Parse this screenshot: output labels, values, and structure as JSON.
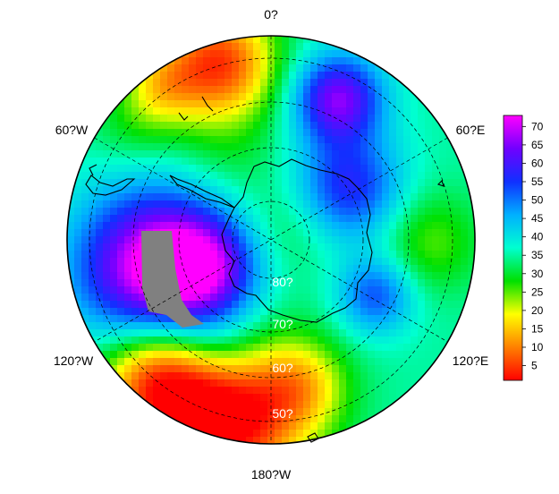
{
  "map": {
    "projection": "south polar stereographic",
    "longitude_labels": [
      "0?",
      "60?E",
      "120?E",
      "180?W",
      "120?W",
      "60?W"
    ],
    "latitude_labels": [
      "80?",
      "70?",
      "60?",
      "50?"
    ],
    "no_data_color": "#808080",
    "coastline_color": "#000000",
    "graticule_style": "dashed"
  },
  "colorbar": {
    "ticks": [
      "70",
      "65",
      "60",
      "55",
      "50",
      "45",
      "40",
      "35",
      "30",
      "25",
      "20",
      "15",
      "10",
      "5"
    ],
    "range": [
      1,
      73
    ],
    "stops": [
      "#ff0000",
      "#ff8000",
      "#ffff00",
      "#00e000",
      "#00ffd0",
      "#00b0ff",
      "#1030ff",
      "#7000ff",
      "#ff00ff"
    ]
  }
}
